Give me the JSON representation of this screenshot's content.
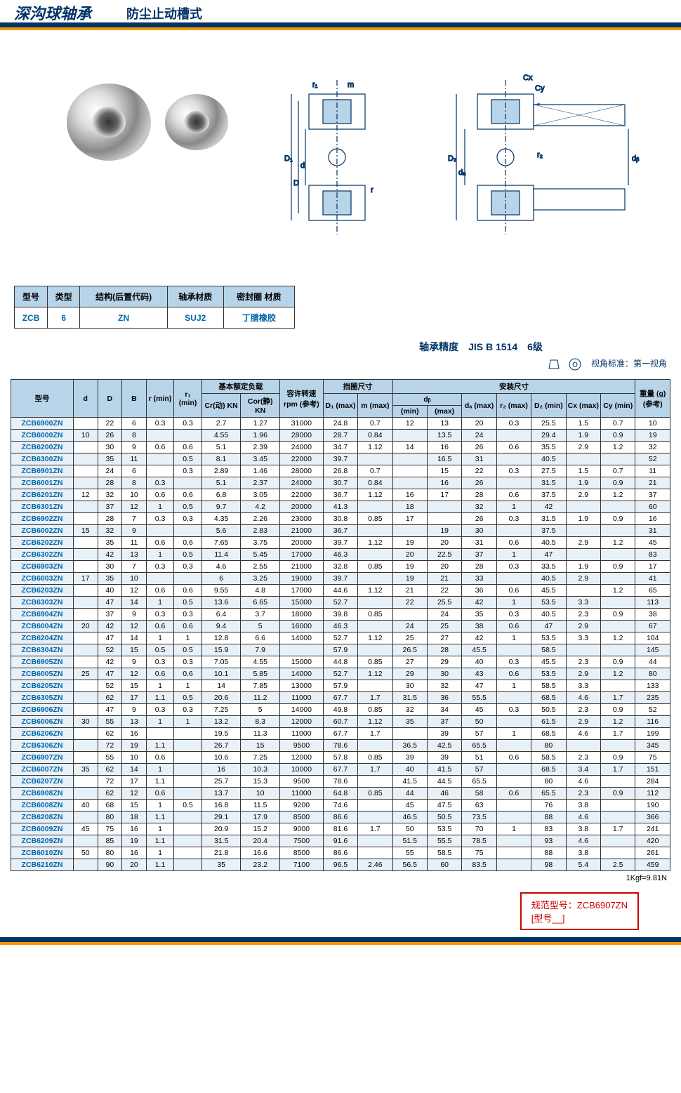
{
  "title": {
    "main": "深沟球轴承",
    "sub": "防尘止动槽式"
  },
  "info_table": {
    "headers": [
      "型号",
      "类型",
      "结构(后置代码)",
      "轴承材质",
      "密封圈\n材质"
    ],
    "values": [
      "ZCB",
      "6",
      "ZN",
      "SUJ2",
      "丁腈橡胶"
    ]
  },
  "precision": "轴承精度　JIS B 1514　6级",
  "view_std": "视角标准：第一视角",
  "diagram_labels": [
    "Cx",
    "Cy",
    "r₁",
    "m",
    "r₂",
    "r₂",
    "D₁",
    "D",
    "d",
    "D₂",
    "dₐ",
    "dᵦ",
    "r"
  ],
  "main_headers": {
    "row1": [
      "型号",
      "d",
      "D",
      "B",
      "r\n(min)",
      "r₁\n(min)",
      "基本额定负载",
      "容许转速\nrpm\n(参考)",
      "挡圈尺寸",
      "安装尺寸",
      "重量\n(g)\n(参考)"
    ],
    "row2": [
      "Cr(动)\nKN",
      "Cor(静)\nKN",
      "D₁\n(max)",
      "m\n(max)",
      "dᵦ",
      "dₐ\n(max)",
      "r₂\n(max)",
      "D₂\n(min)",
      "Cx\n(max)",
      "Cy\n(min)"
    ],
    "row3": [
      "(min)",
      "(max)"
    ]
  },
  "rows": [
    {
      "m": "ZCB6900ZN",
      "d": "",
      "D": "22",
      "B": "6",
      "r": "0.3",
      "r1": "0.3",
      "cr": "2.7",
      "cor": "1.27",
      "rpm": "31000",
      "d1": "24.8",
      "mm": "0.7",
      "dbmin": "12",
      "dbmax": "13",
      "da": "20",
      "r2": "0.3",
      "d2": "25.5",
      "cx": "1.5",
      "cy": "0.7",
      "w": "10"
    },
    {
      "m": "ZCB6000ZN",
      "d": "10",
      "D": "26",
      "B": "8",
      "r": "",
      "r1": "",
      "cr": "4.55",
      "cor": "1.96",
      "rpm": "28000",
      "d1": "28.7",
      "mm": "0.84",
      "dbmin": "",
      "dbmax": "13.5",
      "da": "24",
      "r2": "",
      "d2": "29.4",
      "cx": "1.9",
      "cy": "0.9",
      "w": "19"
    },
    {
      "m": "ZCB6200ZN",
      "d": "",
      "D": "30",
      "B": "9",
      "r": "0.6",
      "r1": "0.6",
      "cr": "5.1",
      "cor": "2.39",
      "rpm": "24000",
      "d1": "34.7",
      "mm": "1.12",
      "dbmin": "14",
      "dbmax": "16",
      "da": "26",
      "r2": "0.6",
      "d2": "35.5",
      "cx": "2.9",
      "cy": "1.2",
      "w": "32"
    },
    {
      "m": "ZCB6300ZN",
      "d": "",
      "D": "35",
      "B": "11",
      "r": "",
      "r1": "0.5",
      "cr": "8.1",
      "cor": "3.45",
      "rpm": "22000",
      "d1": "39.7",
      "mm": "",
      "dbmin": "",
      "dbmax": "16.5",
      "da": "31",
      "r2": "",
      "d2": "40.5",
      "cx": "",
      "cy": "",
      "w": "52"
    },
    {
      "m": "ZCB6901ZN",
      "d": "",
      "D": "24",
      "B": "6",
      "r": "",
      "r1": "0.3",
      "cr": "2.89",
      "cor": "1.46",
      "rpm": "28000",
      "d1": "26.8",
      "mm": "0.7",
      "dbmin": "",
      "dbmax": "15",
      "da": "22",
      "r2": "0.3",
      "d2": "27.5",
      "cx": "1.5",
      "cy": "0.7",
      "w": "11"
    },
    {
      "m": "ZCB6001ZN",
      "d": "",
      "D": "28",
      "B": "8",
      "r": "0.3",
      "r1": "",
      "cr": "5.1",
      "cor": "2.37",
      "rpm": "24000",
      "d1": "30.7",
      "mm": "0.84",
      "dbmin": "",
      "dbmax": "16",
      "da": "26",
      "r2": "",
      "d2": "31.5",
      "cx": "1.9",
      "cy": "0.9",
      "w": "21"
    },
    {
      "m": "ZCB6201ZN",
      "d": "12",
      "D": "32",
      "B": "10",
      "r": "0.6",
      "r1": "0.6",
      "cr": "6.8",
      "cor": "3.05",
      "rpm": "22000",
      "d1": "36.7",
      "mm": "1.12",
      "dbmin": "16",
      "dbmax": "17",
      "da": "28",
      "r2": "0.6",
      "d2": "37.5",
      "cx": "2.9",
      "cy": "1.2",
      "w": "37"
    },
    {
      "m": "ZCB6301ZN",
      "d": "",
      "D": "37",
      "B": "12",
      "r": "1",
      "r1": "0.5",
      "cr": "9.7",
      "cor": "4.2",
      "rpm": "20000",
      "d1": "41.3",
      "mm": "",
      "dbmin": "18",
      "dbmax": "",
      "da": "32",
      "r2": "1",
      "d2": "42",
      "cx": "",
      "cy": "",
      "w": "60"
    },
    {
      "m": "ZCB6902ZN",
      "d": "",
      "D": "28",
      "B": "7",
      "r": "0.3",
      "r1": "0.3",
      "cr": "4.35",
      "cor": "2.26",
      "rpm": "23000",
      "d1": "30.8",
      "mm": "0.85",
      "dbmin": "17",
      "dbmax": "",
      "da": "26",
      "r2": "0.3",
      "d2": "31.5",
      "cx": "1.9",
      "cy": "0.9",
      "w": "16"
    },
    {
      "m": "ZCB6002ZN",
      "d": "15",
      "D": "32",
      "B": "9",
      "r": "",
      "r1": "",
      "cr": "5.6",
      "cor": "2.83",
      "rpm": "21000",
      "d1": "36.7",
      "mm": "",
      "dbmin": "",
      "dbmax": "19",
      "da": "30",
      "r2": "",
      "d2": "37.5",
      "cx": "",
      "cy": "",
      "w": "31"
    },
    {
      "m": "ZCB6202ZN",
      "d": "",
      "D": "35",
      "B": "11",
      "r": "0.6",
      "r1": "0.6",
      "cr": "7.65",
      "cor": "3.75",
      "rpm": "20000",
      "d1": "39.7",
      "mm": "1.12",
      "dbmin": "19",
      "dbmax": "20",
      "da": "31",
      "r2": "0.6",
      "d2": "40.5",
      "cx": "2.9",
      "cy": "1.2",
      "w": "45"
    },
    {
      "m": "ZCB6302ZN",
      "d": "",
      "D": "42",
      "B": "13",
      "r": "1",
      "r1": "0.5",
      "cr": "11.4",
      "cor": "5.45",
      "rpm": "17000",
      "d1": "46.3",
      "mm": "",
      "dbmin": "20",
      "dbmax": "22.5",
      "da": "37",
      "r2": "1",
      "d2": "47",
      "cx": "",
      "cy": "",
      "w": "83"
    },
    {
      "m": "ZCB6903ZN",
      "d": "",
      "D": "30",
      "B": "7",
      "r": "0.3",
      "r1": "0.3",
      "cr": "4.6",
      "cor": "2.55",
      "rpm": "21000",
      "d1": "32.8",
      "mm": "0.85",
      "dbmin": "19",
      "dbmax": "20",
      "da": "28",
      "r2": "0.3",
      "d2": "33.5",
      "cx": "1.9",
      "cy": "0.9",
      "w": "17"
    },
    {
      "m": "ZCB6003ZN",
      "d": "17",
      "D": "35",
      "B": "10",
      "r": "",
      "r1": "",
      "cr": "6",
      "cor": "3.25",
      "rpm": "19000",
      "d1": "39.7",
      "mm": "",
      "dbmin": "19",
      "dbmax": "21",
      "da": "33",
      "r2": "",
      "d2": "40.5",
      "cx": "2.9",
      "cy": "",
      "w": "41"
    },
    {
      "m": "ZCB6203ZN",
      "d": "",
      "D": "40",
      "B": "12",
      "r": "0.6",
      "r1": "0.6",
      "cr": "9.55",
      "cor": "4.8",
      "rpm": "17000",
      "d1": "44.6",
      "mm": "1.12",
      "dbmin": "21",
      "dbmax": "22",
      "da": "36",
      "r2": "0.6",
      "d2": "45.5",
      "cx": "",
      "cy": "1.2",
      "w": "65"
    },
    {
      "m": "ZCB6303ZN",
      "d": "",
      "D": "47",
      "B": "14",
      "r": "1",
      "r1": "0.5",
      "cr": "13.6",
      "cor": "6.65",
      "rpm": "15000",
      "d1": "52.7",
      "mm": "",
      "dbmin": "22",
      "dbmax": "25.5",
      "da": "42",
      "r2": "1",
      "d2": "53.5",
      "cx": "3.3",
      "cy": "",
      "w": "113"
    },
    {
      "m": "ZCB6904ZN",
      "d": "",
      "D": "37",
      "B": "9",
      "r": "0.3",
      "r1": "0.3",
      "cr": "6.4",
      "cor": "3.7",
      "rpm": "18000",
      "d1": "39.8",
      "mm": "0.85",
      "dbmin": "",
      "dbmax": "24",
      "da": "35",
      "r2": "0.3",
      "d2": "40.5",
      "cx": "2.3",
      "cy": "0.9",
      "w": "38"
    },
    {
      "m": "ZCB6004ZN",
      "d": "20",
      "D": "42",
      "B": "12",
      "r": "0.6",
      "r1": "0.6",
      "cr": "9.4",
      "cor": "5",
      "rpm": "16000",
      "d1": "46.3",
      "mm": "",
      "dbmin": "24",
      "dbmax": "25",
      "da": "38",
      "r2": "0.6",
      "d2": "47",
      "cx": "2.9",
      "cy": "",
      "w": "67"
    },
    {
      "m": "ZCB6204ZN",
      "d": "",
      "D": "47",
      "B": "14",
      "r": "1",
      "r1": "1",
      "cr": "12.8",
      "cor": "6.6",
      "rpm": "14000",
      "d1": "52.7",
      "mm": "1.12",
      "dbmin": "25",
      "dbmax": "27",
      "da": "42",
      "r2": "1",
      "d2": "53.5",
      "cx": "3.3",
      "cy": "1.2",
      "w": "104"
    },
    {
      "m": "ZCB6304ZN",
      "d": "",
      "D": "52",
      "B": "15",
      "r": "0.5",
      "r1": "0.5",
      "cr": "15.9",
      "cor": "7.9",
      "rpm": "",
      "d1": "57.9",
      "mm": "",
      "dbmin": "26.5",
      "dbmax": "28",
      "da": "45.5",
      "r2": "",
      "d2": "58.5",
      "cx": "",
      "cy": "",
      "w": "145"
    },
    {
      "m": "ZCB6905ZN",
      "d": "",
      "D": "42",
      "B": "9",
      "r": "0.3",
      "r1": "0.3",
      "cr": "7.05",
      "cor": "4.55",
      "rpm": "15000",
      "d1": "44.8",
      "mm": "0.85",
      "dbmin": "27",
      "dbmax": "29",
      "da": "40",
      "r2": "0.3",
      "d2": "45.5",
      "cx": "2.3",
      "cy": "0.9",
      "w": "44"
    },
    {
      "m": "ZCB6005ZN",
      "d": "25",
      "D": "47",
      "B": "12",
      "r": "0.6",
      "r1": "0.6",
      "cr": "10.1",
      "cor": "5.85",
      "rpm": "14000",
      "d1": "52.7",
      "mm": "1.12",
      "dbmin": "29",
      "dbmax": "30",
      "da": "43",
      "r2": "0.6",
      "d2": "53.5",
      "cx": "2.9",
      "cy": "1.2",
      "w": "80"
    },
    {
      "m": "ZCB6205ZN",
      "d": "",
      "D": "52",
      "B": "15",
      "r": "1",
      "r1": "1",
      "cr": "14",
      "cor": "7.85",
      "rpm": "13000",
      "d1": "57.9",
      "mm": "",
      "dbmin": "30",
      "dbmax": "32",
      "da": "47",
      "r2": "1",
      "d2": "58.5",
      "cx": "3.3",
      "cy": "",
      "w": "133"
    },
    {
      "m": "ZCB6305ZN",
      "d": "",
      "D": "62",
      "B": "17",
      "r": "1.1",
      "r1": "0.5",
      "cr": "20.6",
      "cor": "11.2",
      "rpm": "11000",
      "d1": "67.7",
      "mm": "1.7",
      "dbmin": "31.5",
      "dbmax": "36",
      "da": "55.5",
      "r2": "",
      "d2": "68.5",
      "cx": "4.6",
      "cy": "1.7",
      "w": "235"
    },
    {
      "m": "ZCB6906ZN",
      "d": "",
      "D": "47",
      "B": "9",
      "r": "0.3",
      "r1": "0.3",
      "cr": "7.25",
      "cor": "5",
      "rpm": "14000",
      "d1": "49.8",
      "mm": "0.85",
      "dbmin": "32",
      "dbmax": "34",
      "da": "45",
      "r2": "0.3",
      "d2": "50.5",
      "cx": "2.3",
      "cy": "0.9",
      "w": "52"
    },
    {
      "m": "ZCB6006ZN",
      "d": "30",
      "D": "55",
      "B": "13",
      "r": "1",
      "r1": "1",
      "cr": "13.2",
      "cor": "8.3",
      "rpm": "12000",
      "d1": "60.7",
      "mm": "1.12",
      "dbmin": "35",
      "dbmax": "37",
      "da": "50",
      "r2": "",
      "d2": "61.5",
      "cx": "2.9",
      "cy": "1.2",
      "w": "116"
    },
    {
      "m": "ZCB6206ZN",
      "d": "",
      "D": "62",
      "B": "16",
      "r": "",
      "r1": "",
      "cr": "19.5",
      "cor": "11.3",
      "rpm": "11000",
      "d1": "67.7",
      "mm": "1.7",
      "dbmin": "",
      "dbmax": "39",
      "da": "57",
      "r2": "1",
      "d2": "68.5",
      "cx": "4.6",
      "cy": "1.7",
      "w": "199"
    },
    {
      "m": "ZCB6306ZN",
      "d": "",
      "D": "72",
      "B": "19",
      "r": "1.1",
      "r1": "",
      "cr": "26.7",
      "cor": "15",
      "rpm": "9500",
      "d1": "78.6",
      "mm": "",
      "dbmin": "36.5",
      "dbmax": "42.5",
      "da": "65.5",
      "r2": "",
      "d2": "80",
      "cx": "",
      "cy": "",
      "w": "345"
    },
    {
      "m": "ZCB6907ZN",
      "d": "",
      "D": "55",
      "B": "10",
      "r": "0.6",
      "r1": "",
      "cr": "10.6",
      "cor": "7.25",
      "rpm": "12000",
      "d1": "57.8",
      "mm": "0.85",
      "dbmin": "39",
      "dbmax": "39",
      "da": "51",
      "r2": "0.6",
      "d2": "58.5",
      "cx": "2.3",
      "cy": "0.9",
      "w": "75"
    },
    {
      "m": "ZCB6007ZN",
      "d": "35",
      "D": "62",
      "B": "14",
      "r": "1",
      "r1": "",
      "cr": "16",
      "cor": "10.3",
      "rpm": "10000",
      "d1": "67.7",
      "mm": "1.7",
      "dbmin": "40",
      "dbmax": "41.5",
      "da": "57",
      "r2": "",
      "d2": "68.5",
      "cx": "3.4",
      "cy": "1.7",
      "w": "151"
    },
    {
      "m": "ZCB6207ZN",
      "d": "",
      "D": "72",
      "B": "17",
      "r": "1.1",
      "r1": "",
      "cr": "25.7",
      "cor": "15.3",
      "rpm": "9500",
      "d1": "78.6",
      "mm": "",
      "dbmin": "41.5",
      "dbmax": "44.5",
      "da": "65.5",
      "r2": "",
      "d2": "80",
      "cx": "4.6",
      "cy": "",
      "w": "284"
    },
    {
      "m": "ZCB6908ZN",
      "d": "",
      "D": "62",
      "B": "12",
      "r": "0.6",
      "r1": "",
      "cr": "13.7",
      "cor": "10",
      "rpm": "11000",
      "d1": "64.8",
      "mm": "0.85",
      "dbmin": "44",
      "dbmax": "46",
      "da": "58",
      "r2": "0.6",
      "d2": "65.5",
      "cx": "2.3",
      "cy": "0.9",
      "w": "112"
    },
    {
      "m": "ZCB6008ZN",
      "d": "40",
      "D": "68",
      "B": "15",
      "r": "1",
      "r1": "0.5",
      "cr": "16.8",
      "cor": "11.5",
      "rpm": "9200",
      "d1": "74.6",
      "mm": "",
      "dbmin": "45",
      "dbmax": "47.5",
      "da": "63",
      "r2": "",
      "d2": "76",
      "cx": "3.8",
      "cy": "",
      "w": "190"
    },
    {
      "m": "ZCB6208ZN",
      "d": "",
      "D": "80",
      "B": "18",
      "r": "1.1",
      "r1": "",
      "cr": "29.1",
      "cor": "17.9",
      "rpm": "8500",
      "d1": "86.6",
      "mm": "",
      "dbmin": "46.5",
      "dbmax": "50.5",
      "da": "73.5",
      "r2": "",
      "d2": "88",
      "cx": "4.6",
      "cy": "",
      "w": "366"
    },
    {
      "m": "ZCB6009ZN",
      "d": "45",
      "D": "75",
      "B": "16",
      "r": "1",
      "r1": "",
      "cr": "20.9",
      "cor": "15.2",
      "rpm": "9000",
      "d1": "81.6",
      "mm": "1.7",
      "dbmin": "50",
      "dbmax": "53.5",
      "da": "70",
      "r2": "1",
      "d2": "83",
      "cx": "3.8",
      "cy": "1.7",
      "w": "241"
    },
    {
      "m": "ZCB6209ZN",
      "d": "",
      "D": "85",
      "B": "19",
      "r": "1.1",
      "r1": "",
      "cr": "31.5",
      "cor": "20.4",
      "rpm": "7500",
      "d1": "91.6",
      "mm": "",
      "dbmin": "51.5",
      "dbmax": "55.5",
      "da": "78.5",
      "r2": "",
      "d2": "93",
      "cx": "4.6",
      "cy": "",
      "w": "420"
    },
    {
      "m": "ZCB6010ZN",
      "d": "50",
      "D": "80",
      "B": "16",
      "r": "1",
      "r1": "",
      "cr": "21.8",
      "cor": "16.6",
      "rpm": "8500",
      "d1": "86.6",
      "mm": "",
      "dbmin": "55",
      "dbmax": "58.5",
      "da": "75",
      "r2": "",
      "d2": "88",
      "cx": "3.8",
      "cy": "",
      "w": "261"
    },
    {
      "m": "ZCB6210ZN",
      "d": "",
      "D": "90",
      "B": "20",
      "r": "1.1",
      "r1": "",
      "cr": "35",
      "cor": "23.2",
      "rpm": "7100",
      "d1": "96.5",
      "mm": "2.46",
      "dbmin": "56.5",
      "dbmax": "60",
      "da": "83.5",
      "r2": "",
      "d2": "98",
      "cx": "5.4",
      "cy": "2.5",
      "w": "459"
    }
  ],
  "footer_note": "1Kgf=9.81N",
  "spec": {
    "line1": "规范型号：ZCB6907ZN",
    "line2": "[型号__]"
  }
}
